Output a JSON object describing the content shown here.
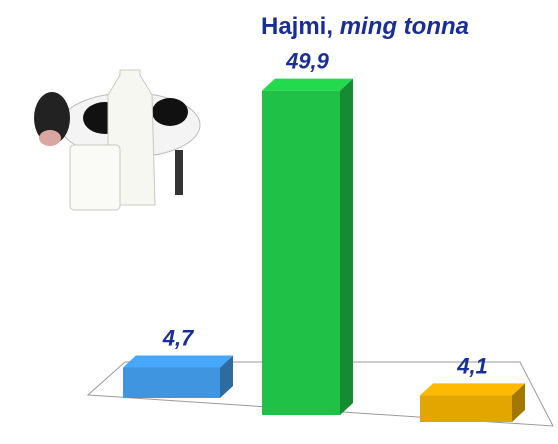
{
  "chart_data": {
    "type": "bar3d",
    "title": {
      "text": "Hajmi,",
      "unit": "ming tonna"
    },
    "categories": [
      null,
      null,
      null
    ],
    "values": [
      4.7,
      49.9,
      4.1
    ],
    "value_labels": [
      "4,7",
      "49,9",
      "4,1"
    ],
    "colors": [
      "#3f95e0",
      "#1fc246",
      "#e3a600"
    ]
  }
}
